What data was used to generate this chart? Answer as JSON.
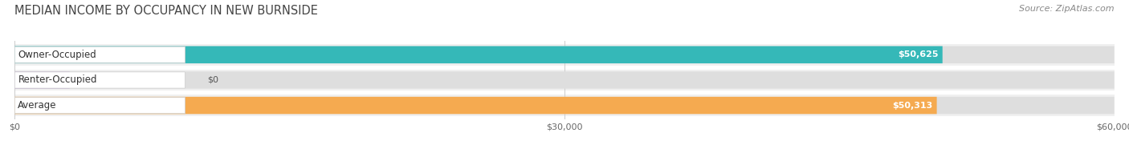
{
  "title": "MEDIAN INCOME BY OCCUPANCY IN NEW BURNSIDE",
  "source": "Source: ZipAtlas.com",
  "categories": [
    "Owner-Occupied",
    "Renter-Occupied",
    "Average"
  ],
  "values": [
    50625,
    0,
    50313
  ],
  "bar_colors": [
    "#35b8b8",
    "#c4afd4",
    "#f5aa50"
  ],
  "bar_bg_color": "#e8e8e8",
  "value_labels": [
    "$50,625",
    "$0",
    "$50,313"
  ],
  "xlim": [
    0,
    60000
  ],
  "xticks": [
    0,
    30000,
    60000
  ],
  "xtick_labels": [
    "$0",
    "$30,000",
    "$60,000"
  ],
  "title_fontsize": 10.5,
  "source_fontsize": 8,
  "label_fontsize": 8.5,
  "value_fontsize": 8,
  "background_color": "#ffffff",
  "plot_bg_color": "#f0f0f0",
  "bar_row_bg": "#f7f7f7"
}
